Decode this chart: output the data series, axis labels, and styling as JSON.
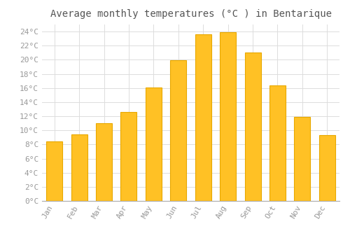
{
  "title": "Average monthly temperatures (°C ) in Bentarique",
  "months": [
    "Jan",
    "Feb",
    "Mar",
    "Apr",
    "May",
    "Jun",
    "Jul",
    "Aug",
    "Sep",
    "Oct",
    "Nov",
    "Dec"
  ],
  "values": [
    8.4,
    9.4,
    11.0,
    12.6,
    16.1,
    19.9,
    23.6,
    23.9,
    21.0,
    16.4,
    11.9,
    9.3
  ],
  "bar_color": "#FFC125",
  "bar_edge_color": "#E8A800",
  "background_color": "#FFFFFF",
  "grid_color": "#DDDDDD",
  "text_color": "#999999",
  "title_color": "#555555",
  "ylim": [
    0,
    25
  ],
  "yticks": [
    0,
    2,
    4,
    6,
    8,
    10,
    12,
    14,
    16,
    18,
    20,
    22,
    24
  ],
  "title_fontsize": 10,
  "tick_fontsize": 8,
  "bar_width": 0.65
}
